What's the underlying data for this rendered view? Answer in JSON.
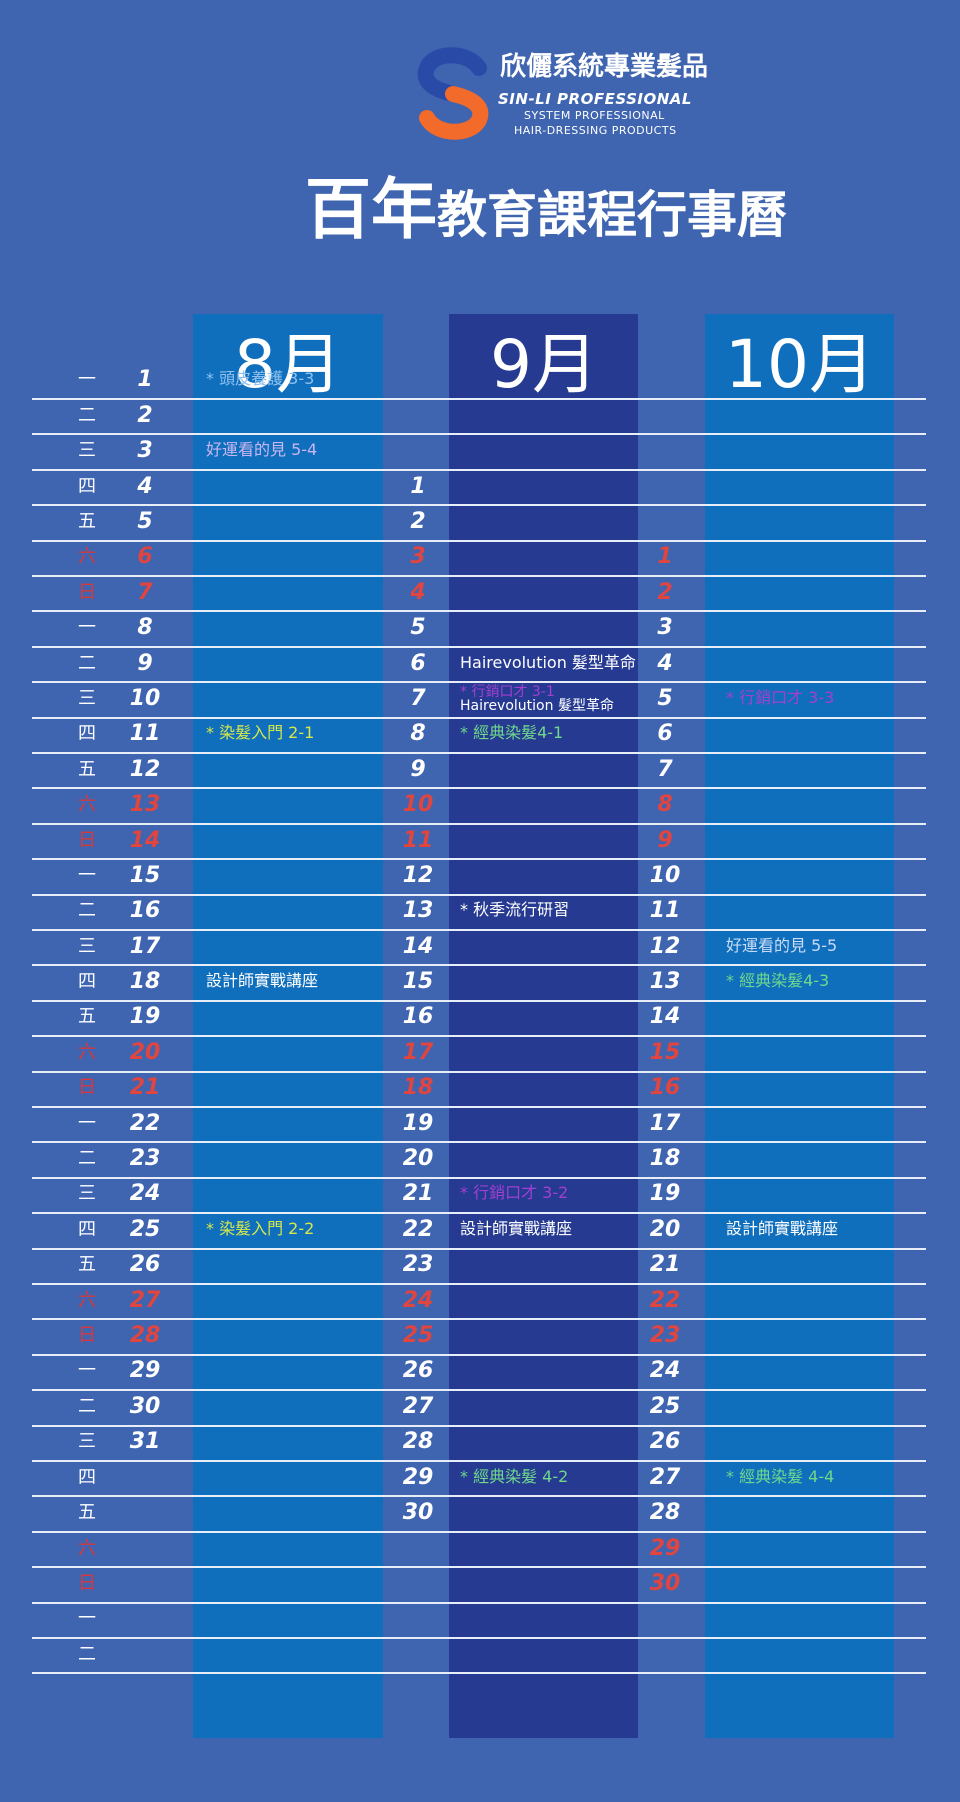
{
  "header": {
    "brand_name_cn": "欣儷系統專業髮品",
    "brand_name_en": "SIN-LI PROFESSIONAL",
    "brand_tagline_1": "SYSTEM PROFESSIONAL",
    "brand_tagline_2": "HAIR-DRESSING PRODUCTS",
    "title_big": "百年",
    "title_rest": "教育課程行事曆"
  },
  "colors": {
    "background": "#3f64b0",
    "august_band": "#0f6fbd",
    "september_band": "#263a92",
    "october_band": "#0f6fbd",
    "weekend": "#e0453f",
    "line": "#e8eef8"
  },
  "months": [
    {
      "label": "8月",
      "start_row": 0,
      "days": 31
    },
    {
      "label": "9月",
      "start_row": 3,
      "days": 30
    },
    {
      "label": "10月",
      "start_row": 5,
      "days": 30
    }
  ],
  "weekday_rows": [
    "一",
    "二",
    "三",
    "四",
    "五",
    "六",
    "日",
    "一",
    "二",
    "三",
    "四",
    "五",
    "六",
    "日",
    "一",
    "二",
    "三",
    "四",
    "五",
    "六",
    "日",
    "一",
    "二",
    "三",
    "四",
    "五",
    "六",
    "日",
    "一",
    "二",
    "三",
    "四",
    "五",
    "六",
    "日",
    "一",
    "二"
  ],
  "weekend_weekdays": [
    "六",
    "日"
  ],
  "events": {
    "august": [
      {
        "day": 1,
        "text": "* 頭皮養護 3-3",
        "color": "#8fc1f0"
      },
      {
        "day": 3,
        "text": "好運看的見 5-4",
        "color": "#c9b6f0"
      },
      {
        "day": 11,
        "text": "* 染髮入門 2-1",
        "color": "#d6e84a"
      },
      {
        "day": 18,
        "text": "設計師實戰講座",
        "color": "#ffffff"
      },
      {
        "day": 25,
        "text": "* 染髮入門 2-2",
        "color": "#d6e84a"
      }
    ],
    "september": [
      {
        "day": 6,
        "text": "Hairevolution 髮型革命",
        "color": "#ffffff"
      },
      {
        "day": 7,
        "text": "* 行銷口才 3-1",
        "color": "#a33fd0"
      },
      {
        "day": 7,
        "text": "Hairevolution 髮型革命",
        "color": "#ffffff"
      },
      {
        "day": 8,
        "text": "* 經典染髮4-1",
        "color": "#6fd88a"
      },
      {
        "day": 13,
        "text": "* 秋季流行研習",
        "color": "#ffffff"
      },
      {
        "day": 21,
        "text": "* 行銷口才 3-2",
        "color": "#a33fd0"
      },
      {
        "day": 22,
        "text": "設計師實戰講座",
        "color": "#ffffff"
      },
      {
        "day": 29,
        "text": "* 經典染髮 4-2",
        "color": "#6fd88a"
      }
    ],
    "october": [
      {
        "day": 5,
        "text": "* 行銷口才 3-3",
        "color": "#a33fd0"
      },
      {
        "day": 12,
        "text": "好運看的見 5-5",
        "color": "#c9dbf5"
      },
      {
        "day": 13,
        "text": "* 經典染髮4-3",
        "color": "#6fd88a"
      },
      {
        "day": 20,
        "text": "設計師實戰講座",
        "color": "#ffffff"
      },
      {
        "day": 27,
        "text": "* 經典染髮 4-4",
        "color": "#6fd88a"
      }
    ]
  }
}
